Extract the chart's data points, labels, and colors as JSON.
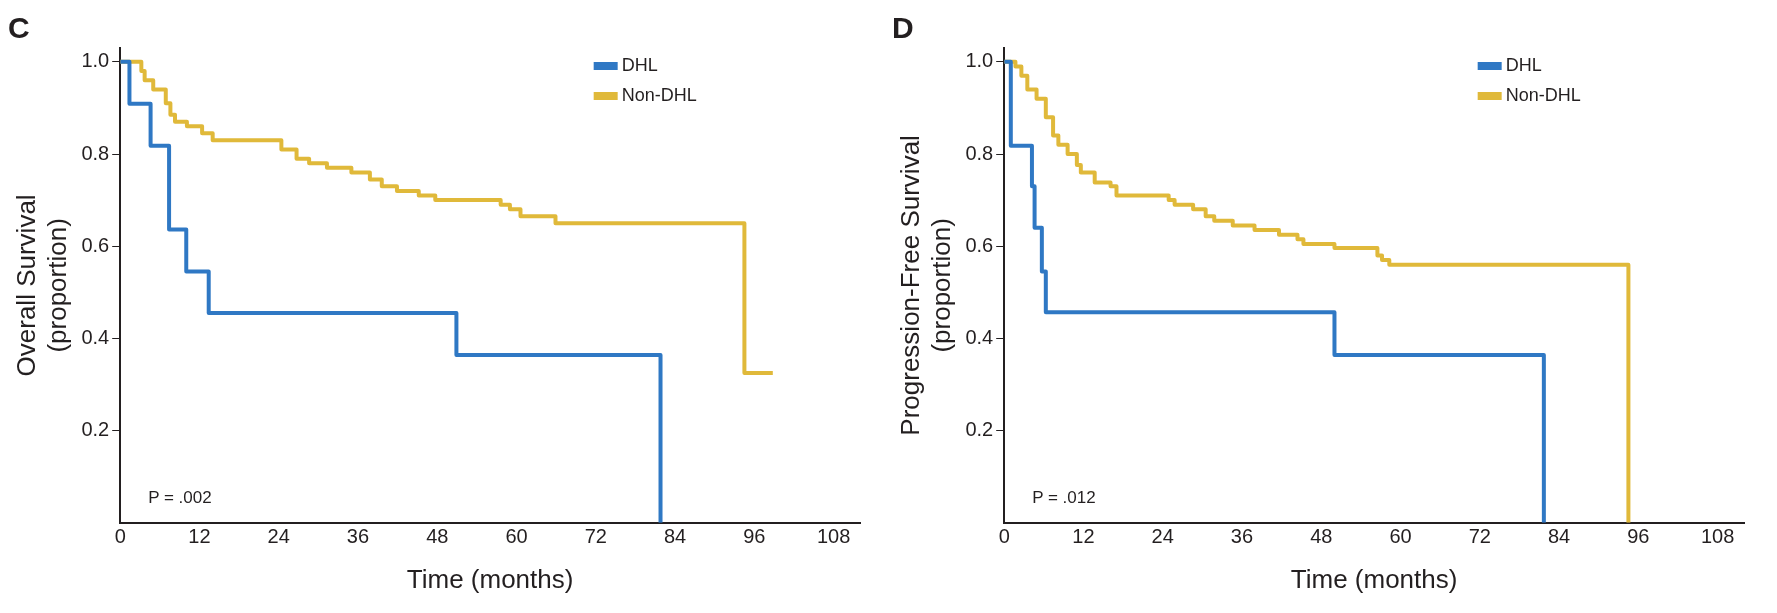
{
  "chart_data": [
    {
      "type": "step",
      "title": "C",
      "xlabel": "Time (months)",
      "ylabel": "Overall Survival\n(proportion)",
      "xlim": [
        0,
        112
      ],
      "xticks": [
        0,
        12,
        24,
        36,
        48,
        60,
        72,
        84,
        96,
        108
      ],
      "ylim": [
        0,
        1.03
      ],
      "yticks": [
        {
          "value": 0.2,
          "label": "0.2"
        },
        {
          "value": 0.4,
          "label": "0.4"
        },
        {
          "value": 0.6,
          "label": "0.6"
        },
        {
          "value": 0.8,
          "label": "0.8"
        },
        {
          "value": 1,
          "label": "1.0"
        }
      ],
      "legend": "top right",
      "grid": false,
      "marker": "none",
      "annotations": [
        "P = .002"
      ],
      "series": [
        {
          "name": "DHL",
          "color": "#2f78c4",
          "x": [
            0,
            1.4,
            4.6,
            7.4,
            10,
            13.4,
            50.9,
            81.8
          ],
          "values": [
            1,
            0.909,
            0.818,
            0.636,
            0.545,
            0.455,
            0.364,
            0
          ]
        },
        {
          "name": "Non-DHL",
          "color": "#e0b93a",
          "x": [
            0,
            3.2,
            3.7,
            5,
            6.9,
            7.6,
            8.3,
            10.1,
            12.4,
            14,
            14.7,
            24.4,
            26.7,
            28.6,
            31.3,
            35,
            37.8,
            39.6,
            41.9,
            45.2,
            47.7,
            57.6,
            59,
            60.6,
            65.9,
            94.5,
            98.8
          ],
          "values": [
            1,
            0.98,
            0.96,
            0.94,
            0.91,
            0.885,
            0.87,
            0.86,
            0.845,
            0.83,
            0.83,
            0.81,
            0.79,
            0.78,
            0.77,
            0.76,
            0.745,
            0.73,
            0.72,
            0.71,
            0.7,
            0.69,
            0.68,
            0.665,
            0.65,
            0.325,
            0.325
          ]
        }
      ]
    },
    {
      "type": "step",
      "title": "D",
      "xlabel": "Time (months)",
      "ylabel": "Progression-Free Survival\n(proportion)",
      "xlim": [
        0,
        112
      ],
      "xticks": [
        0,
        12,
        24,
        36,
        48,
        60,
        72,
        84,
        96,
        108
      ],
      "ylim": [
        0,
        1.03
      ],
      "yticks": [
        {
          "value": 0.2,
          "label": "0.2"
        },
        {
          "value": 0.4,
          "label": "0.4"
        },
        {
          "value": 0.6,
          "label": "0.6"
        },
        {
          "value": 0.8,
          "label": "0.8"
        },
        {
          "value": 1,
          "label": "1.0"
        }
      ],
      "legend": "top right",
      "grid": false,
      "marker": "none",
      "annotations": [
        "P = .012"
      ],
      "series": [
        {
          "name": "DHL",
          "color": "#2f78c4",
          "x": [
            0,
            1,
            4.2,
            4.6,
            5.7,
            6.3,
            50,
            81.7
          ],
          "values": [
            1,
            0.818,
            0.73,
            0.64,
            0.545,
            0.457,
            0.364,
            0
          ]
        },
        {
          "name": "Non-DHL",
          "color": "#e0b93a",
          "x": [
            0,
            1.7,
            2.6,
            3.5,
            4.9,
            6.3,
            7.4,
            8.2,
            9.6,
            11,
            11.6,
            13.7,
            16.1,
            17,
            24.9,
            25.8,
            28.6,
            30.5,
            31.8,
            34.6,
            37.9,
            41.6,
            44.4,
            45.3,
            50,
            56.5,
            57.2,
            58.3,
            60.4,
            94.5
          ],
          "values": [
            1,
            0.99,
            0.97,
            0.94,
            0.92,
            0.88,
            0.84,
            0.82,
            0.8,
            0.776,
            0.76,
            0.738,
            0.73,
            0.71,
            0.7,
            0.69,
            0.68,
            0.665,
            0.655,
            0.645,
            0.635,
            0.625,
            0.615,
            0.605,
            0.596,
            0.58,
            0.57,
            0.56,
            0.56,
            0
          ]
        }
      ]
    }
  ]
}
